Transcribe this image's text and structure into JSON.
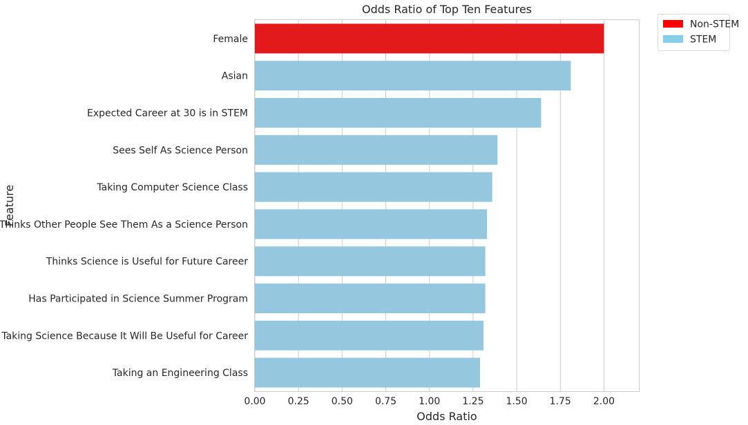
{
  "chart_data": {
    "type": "bar",
    "orientation": "horizontal",
    "title": "Odds Ratio of Top Ten Features",
    "xlabel": "Odds Ratio",
    "ylabel": "Feature",
    "xlim": [
      0,
      2.2
    ],
    "xticks": [
      "0.00",
      "0.25",
      "0.50",
      "0.75",
      "1.00",
      "1.25",
      "1.50",
      "1.75",
      "2.00"
    ],
    "grid": true,
    "legend_position": "outside-top-right",
    "categories": [
      "Female",
      "Asian",
      "Expected Career at 30 is in STEM",
      "Sees Self As Science Person",
      "Taking Computer Science Class",
      "Thinks Other People See Them As a Science Person",
      "Thinks Science is Useful for Future Career",
      "Has Participated in Science Summer Program",
      "Taking Science Because It Will Be Useful for Career",
      "Taking an Engineering Class"
    ],
    "values": [
      2.0,
      1.81,
      1.64,
      1.39,
      1.36,
      1.33,
      1.32,
      1.32,
      1.31,
      1.29
    ],
    "groups": [
      "Non-STEM",
      "STEM",
      "STEM",
      "STEM",
      "STEM",
      "STEM",
      "STEM",
      "STEM",
      "STEM",
      "STEM"
    ],
    "legend": [
      {
        "name": "Non-STEM",
        "color": "#ff0000"
      },
      {
        "name": "STEM",
        "color": "#87ceeb"
      }
    ],
    "bar_colors": {
      "Non-STEM": "#e31a1c",
      "STEM": "#95c8de"
    }
  }
}
